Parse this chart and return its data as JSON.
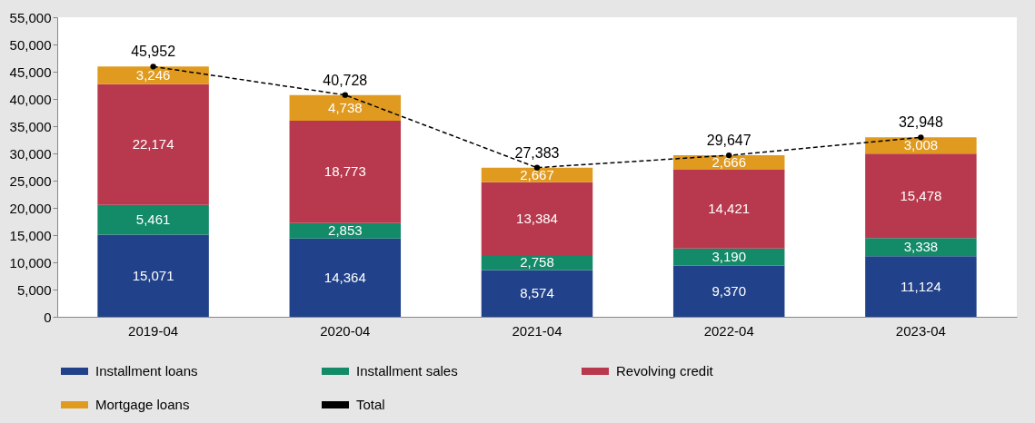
{
  "chart_data": {
    "type": "bar",
    "stacked": true,
    "categories": [
      "2019-04",
      "2020-04",
      "2021-04",
      "2022-04",
      "2023-04"
    ],
    "series": [
      {
        "name": "Installment loans",
        "color": "#21428a",
        "values": [
          15071,
          14364,
          8574,
          9370,
          11124
        ],
        "value_labels": [
          "15,071",
          "14,364",
          "8,574",
          "9,370",
          "11,124"
        ]
      },
      {
        "name": "Installment sales",
        "color": "#138a68",
        "values": [
          5461,
          2853,
          2758,
          3190,
          3338
        ],
        "value_labels": [
          "5,461",
          "2,853",
          "2,758",
          "3,190",
          "3,338"
        ]
      },
      {
        "name": "Revolving credit",
        "color": "#b8394d",
        "values": [
          22174,
          18773,
          13384,
          14421,
          15478
        ],
        "value_labels": [
          "22,174",
          "18,773",
          "13,384",
          "14,421",
          "15,478"
        ]
      },
      {
        "name": "Mortgage loans",
        "color": "#e09a1f",
        "values": [
          3246,
          4738,
          2667,
          2666,
          3008
        ],
        "value_labels": [
          "3,246",
          "4,738",
          "2,667",
          "2,666",
          "3,008"
        ]
      },
      {
        "name": "Total",
        "type": "line",
        "color": "#000000",
        "values": [
          45952,
          40728,
          27383,
          29647,
          32948
        ],
        "value_labels": [
          "45,952",
          "40,728",
          "27,383",
          "29,647",
          "32,948"
        ],
        "marker": "circle",
        "line_style": "dashed"
      }
    ],
    "ylim": [
      0,
      55000
    ],
    "yticks": [
      0,
      {
        "value": 5000,
        "label": "5,000"
      },
      {
        "value": 10000,
        "label": "10,000"
      },
      {
        "value": 15000,
        "label": "15,000"
      },
      {
        "value": 20000,
        "label": "20,000"
      },
      {
        "value": 25000,
        "label": "25,000"
      },
      {
        "value": 30000,
        "label": "30,000"
      },
      {
        "value": 35000,
        "label": "35,000"
      },
      {
        "value": 40000,
        "label": "40,000"
      },
      {
        "value": 45000,
        "label": "45,000"
      },
      {
        "value": 50000,
        "label": "50,000"
      },
      {
        "value": 55000,
        "label": "55,000"
      }
    ],
    "grid": false,
    "data_labels": true,
    "legend": "bottom"
  }
}
